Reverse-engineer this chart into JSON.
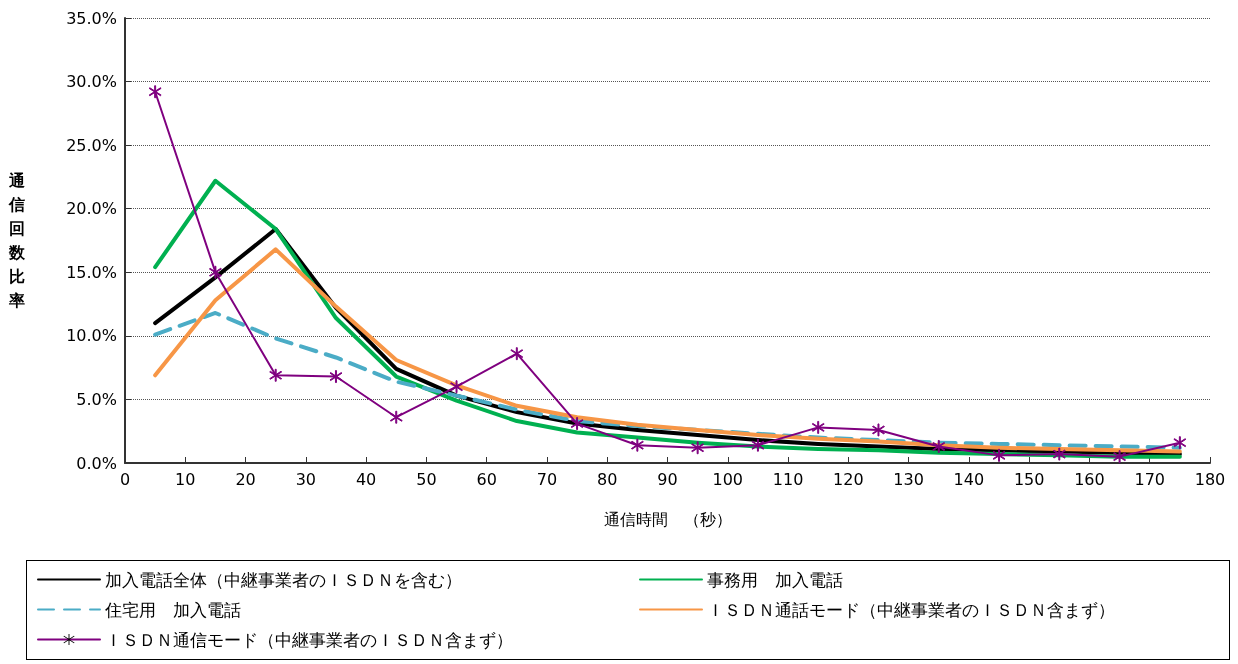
{
  "chart_data": {
    "type": "line",
    "xlabel": "通信時間　（秒）",
    "ylabel": "通信回数比率",
    "x": [
      5,
      15,
      25,
      35,
      45,
      55,
      65,
      75,
      85,
      95,
      105,
      115,
      125,
      135,
      145,
      155,
      165,
      175
    ],
    "series": [
      {
        "name": "加入電話全体（中継事業者のＩＳＤＮを含む）",
        "color": "#000000",
        "marker": "none",
        "line_style": "solid",
        "values": [
          11.0,
          14.6,
          18.4,
          12.2,
          7.4,
          5.3,
          4.0,
          3.1,
          2.6,
          2.2,
          1.8,
          1.5,
          1.3,
          1.1,
          1.0,
          0.9,
          0.8,
          0.7
        ]
      },
      {
        "name": "事務用　加入電話",
        "color": "#00b050",
        "marker": "none",
        "line_style": "solid",
        "values": [
          15.4,
          22.2,
          18.4,
          11.4,
          6.8,
          4.9,
          3.3,
          2.4,
          2.0,
          1.6,
          1.3,
          1.1,
          1.0,
          0.8,
          0.7,
          0.6,
          0.5,
          0.5
        ]
      },
      {
        "name": "住宅用　加入電話",
        "color": "#4bacc6",
        "marker": "none",
        "line_style": "dashed",
        "values": [
          10.1,
          11.8,
          9.8,
          8.3,
          6.4,
          5.3,
          4.2,
          3.3,
          2.9,
          2.6,
          2.3,
          2.0,
          1.8,
          1.6,
          1.5,
          1.4,
          1.3,
          1.2
        ]
      },
      {
        "name": "ＩＳＤＮ通話モード（中継事業者のＩＳＤＮ含まず）",
        "color": "#f79646",
        "marker": "none",
        "line_style": "solid",
        "values": [
          6.9,
          12.8,
          16.8,
          12.3,
          8.1,
          6.1,
          4.5,
          3.6,
          3.0,
          2.6,
          2.2,
          1.9,
          1.7,
          1.4,
          1.2,
          1.1,
          1.0,
          0.9
        ]
      },
      {
        "name": "ＩＳＤＮ通信モード（中継事業者のＩＳＤＮ含まず）",
        "color": "#7f007f",
        "marker": "cross",
        "line_style": "solid",
        "values": [
          29.2,
          15.0,
          6.9,
          6.8,
          3.6,
          6.0,
          8.6,
          3.1,
          1.4,
          1.2,
          1.4,
          2.8,
          2.6,
          1.3,
          0.6,
          0.7,
          0.5,
          1.6
        ]
      }
    ],
    "xlim": [
      0,
      180
    ],
    "xticks": [
      0,
      10,
      20,
      30,
      40,
      50,
      60,
      70,
      80,
      90,
      100,
      110,
      120,
      130,
      140,
      150,
      160,
      170,
      180
    ],
    "ylim": [
      0,
      35
    ],
    "yticks": [
      {
        "value": 0,
        "label": "0.0%"
      },
      {
        "value": 5,
        "label": "5.0%"
      },
      {
        "value": 10,
        "label": "10.0%"
      },
      {
        "value": 15,
        "label": "15.0%"
      },
      {
        "value": 20,
        "label": "20.0%"
      },
      {
        "value": 25,
        "label": "25.0%"
      },
      {
        "value": 30,
        "label": "30.0%"
      },
      {
        "value": 35,
        "label": "35.0%"
      }
    ],
    "grid": "y",
    "legend": "bottom"
  }
}
